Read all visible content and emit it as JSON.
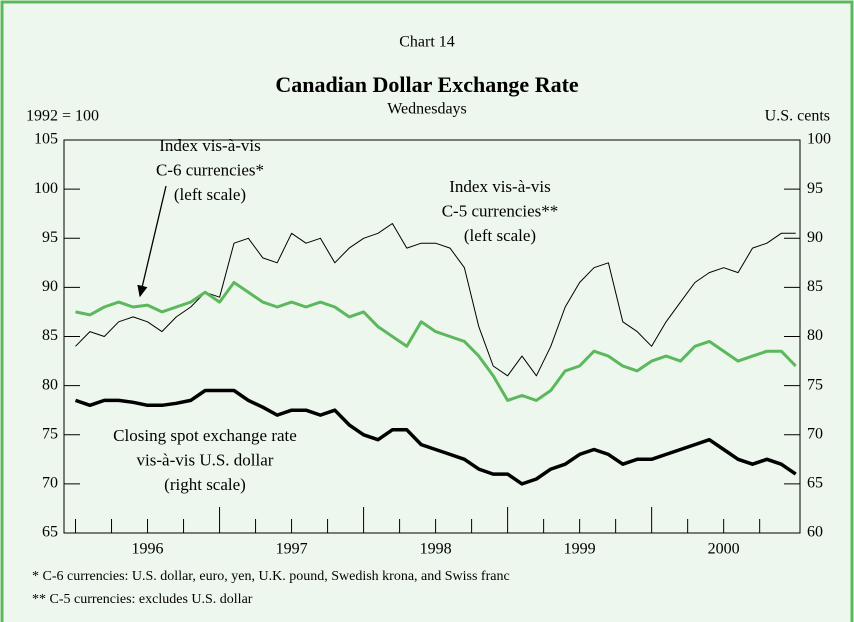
{
  "chart_data": {
    "type": "line",
    "subheading": "Chart 14",
    "title": "Canadian Dollar Exchange Rate",
    "subtitle": "Wednesdays",
    "ylabel": "1992 = 100",
    "y2label": "U.S. cents",
    "x": [
      1996.0,
      1996.1,
      1996.2,
      1996.3,
      1996.4,
      1996.5,
      1996.6,
      1996.7,
      1996.8,
      1996.9,
      1997.0,
      1997.1,
      1997.2,
      1997.3,
      1997.4,
      1997.5,
      1997.6,
      1997.7,
      1997.8,
      1997.9,
      1998.0,
      1998.1,
      1998.2,
      1998.3,
      1998.4,
      1998.5,
      1998.6,
      1998.7,
      1998.8,
      1998.9,
      1999.0,
      1999.1,
      1999.2,
      1999.3,
      1999.4,
      1999.5,
      1999.6,
      1999.7,
      1999.8,
      1999.9,
      2000.0,
      2000.1,
      2000.2,
      2000.3,
      2000.4,
      2000.5,
      2000.6,
      2000.7,
      2000.8,
      2000.9,
      2001.0
    ],
    "series": [
      {
        "label": [
          "Index vis-à-vis",
          "C-5 currencies**",
          "(left scale)"
        ],
        "color": "#000000",
        "width": 1,
        "axis": "y",
        "values": [
          84,
          85.5,
          85,
          86.5,
          87,
          86.5,
          85.5,
          87,
          88,
          89.5,
          89,
          94.5,
          95,
          93,
          92.5,
          95.5,
          94.5,
          95,
          92.5,
          94,
          95,
          95.5,
          96.5,
          94,
          94.5,
          94.5,
          94,
          92,
          86,
          82,
          81,
          83,
          81,
          84,
          88,
          90.5,
          92,
          92.5,
          86.5,
          85.5,
          84,
          86.5,
          88.5,
          90.5,
          91.5,
          92,
          91.5,
          94,
          94.5,
          95.5,
          95.5
        ]
      },
      {
        "label": [
          "Index vis-à-vis",
          "C-6 currencies*",
          "(left scale)"
        ],
        "color": "#5cb85c",
        "width": 3,
        "axis": "y",
        "values": [
          87.5,
          87.2,
          88,
          88.5,
          88,
          88.2,
          87.5,
          88,
          88.5,
          89.5,
          88.5,
          90.5,
          89.5,
          88.5,
          88,
          88.5,
          88,
          88.5,
          88,
          87,
          87.5,
          86,
          85,
          84,
          86.5,
          85.5,
          85,
          84.5,
          83,
          81,
          78.5,
          79,
          78.5,
          79.5,
          81.5,
          82,
          83.5,
          83,
          82,
          81.5,
          82.5,
          83,
          82.5,
          84,
          84.5,
          83.5,
          82.5,
          83,
          83.5,
          83.5,
          82
        ]
      },
      {
        "label": [
          "Closing spot exchange rate",
          "vis-à-vis U.S. dollar",
          "(right scale)"
        ],
        "color": "#000000",
        "width": 3.5,
        "axis": "y2",
        "values": [
          73.5,
          73,
          73.5,
          73.5,
          73.3,
          73,
          73,
          73.2,
          73.5,
          74.5,
          74.5,
          74.5,
          73.5,
          72.8,
          72,
          72.5,
          72.5,
          72,
          72.5,
          71,
          70,
          69.5,
          70.5,
          70.5,
          69,
          68.5,
          68,
          67.5,
          66.5,
          66,
          66,
          65,
          65.5,
          66.5,
          67,
          68,
          68.5,
          68,
          67,
          67.5,
          67.5,
          68,
          68.5,
          69,
          69.5,
          68.5,
          67.5,
          67,
          67.5,
          67,
          66
        ]
      }
    ],
    "xlim": [
      1995.92,
      2001.03
    ],
    "xticks": [
      {
        "value": 1996.5,
        "label": "1996"
      },
      {
        "value": 1997.5,
        "label": "1997"
      },
      {
        "value": 1998.5,
        "label": "1998"
      },
      {
        "value": 1999.5,
        "label": "1999"
      },
      {
        "value": 2000.5,
        "label": "2000"
      }
    ],
    "xmajorticks": [
      1997,
      1998,
      1999,
      2000
    ],
    "xminorticks": [
      1996.0,
      1996.25,
      1996.5,
      1996.75,
      1997.25,
      1997.5,
      1997.75,
      1998.25,
      1998.5,
      1998.75,
      1999.25,
      1999.5,
      1999.75,
      2000.25,
      2000.5,
      2000.75
    ],
    "ylim": [
      65,
      105
    ],
    "yticks": [
      65,
      70,
      75,
      80,
      85,
      90,
      95,
      100,
      105
    ],
    "y2lim": [
      60,
      100
    ],
    "y2ticks": [
      60,
      65,
      70,
      75,
      80,
      85,
      90,
      95,
      100
    ],
    "footnotes": [
      "*   C-6 currencies: U.S. dollar, euro, yen, U.K. pound, Swedish krona, and Swiss franc",
      "** C-5 currencies: excludes U.S. dollar"
    ]
  }
}
